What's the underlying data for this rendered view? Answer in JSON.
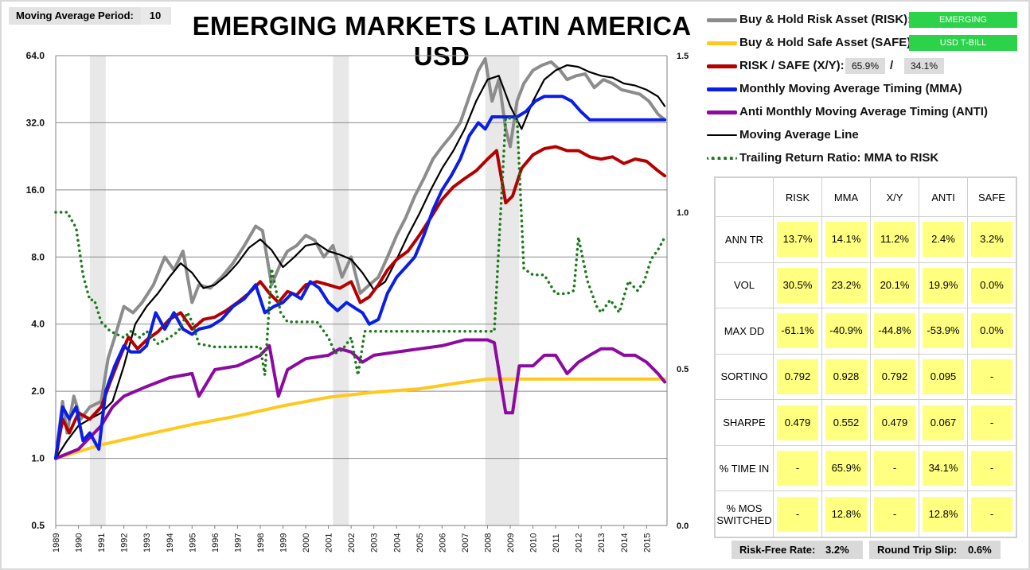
{
  "settings": {
    "ma_period_label": "Moving Average Period:",
    "ma_period_value": "10"
  },
  "chart_data": {
    "type": "line",
    "title": "EMERGING MARKETS LATIN AMERICA USD",
    "y_scale": "log2",
    "ylim": [
      0.5,
      64
    ],
    "y_ticks": [
      "64.0",
      "32.0",
      "16.0",
      "8.0",
      "4.0",
      "2.0",
      "1.0",
      "0.5"
    ],
    "y2lim": [
      0.0,
      1.5
    ],
    "y2_ticks": [
      "1.5",
      "1.0",
      "0.5",
      "0.0"
    ],
    "x_range": [
      1989.0,
      2015.9
    ],
    "x_ticks": [
      "1989",
      "1990",
      "1991",
      "1992",
      "1993",
      "1994",
      "1995",
      "1996",
      "1997",
      "1998",
      "1999",
      "2000",
      "2001",
      "2002",
      "2003",
      "2004",
      "2005",
      "2006",
      "2007",
      "2008",
      "2009",
      "2010",
      "2011",
      "2012",
      "2013",
      "2014",
      "2015"
    ],
    "grid": true,
    "legend_position": "right",
    "shaded_periods": [
      [
        1990.5,
        1991.2
      ],
      [
        2001.2,
        2001.9
      ],
      [
        2007.9,
        2009.4
      ]
    ],
    "series": [
      {
        "name": "Buy & Hold Risk Asset (RISK):",
        "axis": "left",
        "color": "#8c8c8c",
        "x": [
          1989.0,
          1989.3,
          1989.5,
          1989.8,
          1990.1,
          1990.5,
          1991.0,
          1991.3,
          1991.6,
          1992.0,
          1992.4,
          1992.8,
          1993.3,
          1993.8,
          1994.2,
          1994.6,
          1995.0,
          1995.3,
          1995.8,
          1996.3,
          1996.8,
          1997.3,
          1997.8,
          1998.1,
          1998.5,
          1998.9,
          1999.2,
          1999.6,
          2000.0,
          2000.4,
          2000.8,
          2001.2,
          2001.6,
          2002.0,
          2002.4,
          2002.8,
          2003.2,
          2003.6,
          2004.0,
          2004.4,
          2004.8,
          2005.2,
          2005.6,
          2006.0,
          2006.4,
          2006.8,
          2007.2,
          2007.6,
          2007.9,
          2008.2,
          2008.5,
          2008.8,
          2009.0,
          2009.3,
          2009.6,
          2010.0,
          2010.4,
          2010.8,
          2011.2,
          2011.5,
          2011.9,
          2012.3,
          2012.7,
          2013.1,
          2013.5,
          2013.9,
          2014.3,
          2014.7,
          2015.1,
          2015.5,
          2015.8
        ],
        "y": [
          1.0,
          1.8,
          1.3,
          1.9,
          1.5,
          1.7,
          1.8,
          2.8,
          3.5,
          4.8,
          4.5,
          5.0,
          6.0,
          8.0,
          7.0,
          8.5,
          5.0,
          6.0,
          5.8,
          6.5,
          7.5,
          9.0,
          11.0,
          10.5,
          6.0,
          7.5,
          8.5,
          9.0,
          10.0,
          9.5,
          8.0,
          9.0,
          6.5,
          8.0,
          5.5,
          6.0,
          6.5,
          8.0,
          10.0,
          12.0,
          15.0,
          18.0,
          22.0,
          25.0,
          28.0,
          32.0,
          42.0,
          55.0,
          62.0,
          40.0,
          50.0,
          30.0,
          25.0,
          40.0,
          48.0,
          55.0,
          58.0,
          60.0,
          55.0,
          50.0,
          52.0,
          53.0,
          46.0,
          50.0,
          48.0,
          45.0,
          44.0,
          43.0,
          40.0,
          35.0,
          33.0
        ]
      },
      {
        "name": "Buy & Hold Safe Asset (SAFE):",
        "axis": "left",
        "color": "#ffc81e",
        "x": [
          1989.0,
          1991.0,
          1993.0,
          1995.0,
          1997.0,
          1999.0,
          2001.0,
          2003.0,
          2005.0,
          2007.0,
          2008.0,
          2009.0,
          2011.0,
          2013.0,
          2015.8
        ],
        "y": [
          1.0,
          1.15,
          1.28,
          1.42,
          1.55,
          1.72,
          1.88,
          1.98,
          2.05,
          2.2,
          2.27,
          2.27,
          2.27,
          2.27,
          2.27
        ]
      },
      {
        "name": "RISK / SAFE (X/Y):",
        "axis": "left",
        "color": "#b40000",
        "x": [
          1989.0,
          1989.3,
          1989.6,
          1990.0,
          1990.5,
          1991.0,
          1991.4,
          1991.8,
          1992.2,
          1992.6,
          1993.0,
          1993.5,
          1994.0,
          1994.5,
          1995.0,
          1995.5,
          1996.0,
          1996.5,
          1997.0,
          1997.5,
          1998.0,
          1998.4,
          1998.8,
          1999.2,
          1999.6,
          2000.0,
          2000.5,
          2001.0,
          2001.5,
          2002.0,
          2002.4,
          2002.8,
          2003.2,
          2003.6,
          2004.0,
          2004.5,
          2005.0,
          2005.5,
          2006.0,
          2006.5,
          2007.0,
          2007.5,
          2008.0,
          2008.4,
          2008.8,
          2009.1,
          2009.5,
          2010.0,
          2010.5,
          2011.0,
          2011.5,
          2012.0,
          2012.5,
          2013.0,
          2013.5,
          2014.0,
          2014.5,
          2015.0,
          2015.5,
          2015.8
        ],
        "y": [
          1.0,
          1.5,
          1.3,
          1.6,
          1.5,
          1.7,
          2.2,
          2.8,
          3.5,
          3.1,
          3.4,
          3.7,
          4.2,
          4.5,
          3.8,
          4.2,
          4.3,
          4.6,
          5.0,
          5.5,
          6.2,
          5.5,
          5.0,
          5.6,
          5.4,
          6.0,
          6.2,
          6.0,
          5.8,
          6.2,
          5.0,
          5.3,
          6.0,
          7.0,
          7.8,
          8.5,
          10.0,
          12.0,
          14.5,
          16.5,
          18.0,
          19.5,
          22.0,
          24.0,
          14.0,
          15.0,
          20.0,
          23.0,
          24.5,
          25.0,
          24.0,
          24.0,
          22.5,
          22.0,
          22.5,
          21.0,
          22.0,
          21.5,
          19.5,
          18.5
        ]
      },
      {
        "name": "Monthly Moving Average Timing (MMA)",
        "axis": "left",
        "color": "#0a1ee6",
        "x": [
          1989.0,
          1989.3,
          1989.6,
          1989.9,
          1990.2,
          1990.5,
          1990.9,
          1991.2,
          1991.6,
          1992.0,
          1992.3,
          1992.7,
          1993.0,
          1993.4,
          1993.8,
          1994.2,
          1994.6,
          1995.0,
          1995.3,
          1995.8,
          1996.3,
          1996.8,
          1997.3,
          1997.8,
          1998.2,
          1998.6,
          1999.0,
          1999.4,
          1999.8,
          2000.2,
          2000.6,
          2001.0,
          2001.4,
          2001.8,
          2002.2,
          2002.5,
          2002.8,
          2003.2,
          2003.6,
          2004.0,
          2004.4,
          2004.8,
          2005.2,
          2005.6,
          2006.0,
          2006.4,
          2006.8,
          2007.2,
          2007.6,
          2007.9,
          2008.2,
          2008.6,
          2009.0,
          2009.3,
          2009.7,
          2010.1,
          2010.5,
          2010.9,
          2011.3,
          2011.7,
          2012.1,
          2012.5,
          2012.9,
          2013.3,
          2013.7,
          2014.1,
          2014.5,
          2014.9,
          2015.3,
          2015.8
        ],
        "y": [
          1.0,
          1.7,
          1.5,
          1.7,
          1.2,
          1.3,
          1.1,
          2.0,
          2.6,
          3.2,
          3.0,
          3.0,
          3.2,
          4.5,
          3.8,
          4.5,
          3.8,
          3.6,
          3.8,
          3.9,
          4.2,
          4.8,
          5.2,
          6.0,
          4.5,
          4.8,
          5.0,
          5.5,
          5.2,
          6.2,
          5.8,
          5.0,
          4.6,
          5.0,
          4.7,
          4.5,
          4.0,
          4.2,
          5.5,
          6.5,
          7.2,
          8.0,
          10.0,
          13.0,
          16.0,
          18.5,
          22.0,
          28.0,
          32.0,
          30.0,
          34.0,
          34.0,
          34.0,
          34.0,
          36.0,
          40.0,
          42.0,
          42.0,
          42.0,
          40.0,
          36.0,
          33.0,
          33.0,
          33.0,
          33.0,
          33.0,
          33.0,
          33.0,
          33.0,
          33.0
        ]
      },
      {
        "name": "Anti Monthly Moving Average Timing (ANTI)",
        "axis": "left",
        "color": "#8c0aa0",
        "x": [
          1989.0,
          1990.0,
          1991.0,
          1991.5,
          1992.0,
          1993.0,
          1994.0,
          1995.0,
          1995.3,
          1996.0,
          1997.0,
          1998.0,
          1998.4,
          1998.8,
          1999.2,
          2000.0,
          2001.0,
          2001.5,
          2002.0,
          2002.5,
          2003.0,
          2004.0,
          2005.0,
          2006.0,
          2007.0,
          2008.0,
          2008.3,
          2008.8,
          2009.1,
          2009.4,
          2010.0,
          2010.5,
          2011.0,
          2011.5,
          2012.0,
          2012.5,
          2013.0,
          2013.5,
          2014.0,
          2014.5,
          2015.0,
          2015.5,
          2015.8
        ],
        "y": [
          1.0,
          1.1,
          1.4,
          1.7,
          1.9,
          2.1,
          2.3,
          2.4,
          1.9,
          2.5,
          2.6,
          2.9,
          3.2,
          1.9,
          2.5,
          2.8,
          2.9,
          3.1,
          3.0,
          2.7,
          2.9,
          3.0,
          3.1,
          3.2,
          3.4,
          3.4,
          3.3,
          1.6,
          1.6,
          2.6,
          2.6,
          2.9,
          2.9,
          2.4,
          2.7,
          2.9,
          3.1,
          3.1,
          2.9,
          2.9,
          2.7,
          2.4,
          2.2
        ]
      },
      {
        "name": "Moving Average Line",
        "axis": "left",
        "color": "#000000",
        "x": [
          1989.0,
          1989.5,
          1990.0,
          1990.5,
          1991.0,
          1991.5,
          1992.0,
          1992.5,
          1993.0,
          1993.5,
          1994.0,
          1994.5,
          1995.0,
          1995.5,
          1996.0,
          1996.5,
          1997.0,
          1997.5,
          1998.0,
          1998.5,
          1999.0,
          1999.5,
          2000.0,
          2000.5,
          2001.0,
          2001.5,
          2002.0,
          2002.5,
          2003.0,
          2003.5,
          2004.0,
          2004.5,
          2005.0,
          2005.5,
          2006.0,
          2006.5,
          2007.0,
          2007.5,
          2008.0,
          2008.5,
          2009.0,
          2009.5,
          2010.0,
          2010.5,
          2011.0,
          2011.5,
          2012.0,
          2012.5,
          2013.0,
          2013.5,
          2014.0,
          2014.5,
          2015.0,
          2015.5,
          2015.8
        ],
        "y": [
          1.0,
          1.2,
          1.4,
          1.5,
          1.6,
          1.8,
          2.6,
          4.0,
          4.8,
          5.5,
          6.5,
          7.5,
          6.8,
          5.8,
          6.0,
          6.6,
          7.5,
          8.8,
          9.6,
          8.6,
          7.2,
          8.0,
          9.0,
          9.2,
          8.5,
          8.2,
          7.8,
          6.8,
          5.7,
          6.2,
          7.8,
          10.0,
          12.5,
          16.0,
          20.0,
          24.0,
          30.0,
          40.0,
          50.0,
          52.0,
          38.0,
          30.0,
          40.0,
          50.0,
          55.0,
          58.0,
          57.0,
          54.0,
          52.0,
          51.0,
          48.0,
          47.0,
          45.0,
          42.0,
          38.0
        ]
      },
      {
        "name": "Trailing Return Ratio: MMA to RISK",
        "axis": "right",
        "color": "#1a7a1a",
        "dotted": true,
        "x": [
          1989.0,
          1989.5,
          1989.9,
          1990.2,
          1990.5,
          1990.7,
          1991.0,
          1991.4,
          1992.0,
          1992.3,
          1992.7,
          1993.0,
          1993.5,
          1994.0,
          1994.4,
          1994.8,
          1995.0,
          1995.3,
          1996.0,
          1996.6,
          1997.0,
          1997.5,
          1998.0,
          1998.2,
          1998.5,
          1998.9,
          1999.2,
          1999.6,
          2000.0,
          2000.5,
          2001.0,
          2001.3,
          2001.6,
          2002.0,
          2002.3,
          2002.6,
          2002.8,
          2003.2,
          2004.0,
          2005.0,
          2006.0,
          2007.0,
          2007.6,
          2008.0,
          2008.3,
          2008.8,
          2009.0,
          2009.3,
          2009.6,
          2010.0,
          2010.5,
          2011.0,
          2011.5,
          2011.8,
          2012.0,
          2012.4,
          2012.8,
          2013.0,
          2013.4,
          2013.8,
          2014.2,
          2014.6,
          2014.9,
          2015.2,
          2015.5,
          2015.8
        ],
        "y": [
          1.0,
          1.0,
          0.95,
          0.8,
          0.72,
          0.72,
          0.65,
          0.62,
          0.6,
          0.62,
          0.6,
          0.62,
          0.58,
          0.6,
          0.62,
          0.68,
          0.65,
          0.58,
          0.57,
          0.57,
          0.57,
          0.57,
          0.57,
          0.48,
          0.82,
          0.68,
          0.65,
          0.65,
          0.65,
          0.65,
          0.6,
          0.55,
          0.56,
          0.6,
          0.48,
          0.62,
          0.62,
          0.62,
          0.62,
          0.62,
          0.62,
          0.62,
          0.62,
          0.62,
          0.62,
          1.3,
          1.3,
          1.3,
          0.82,
          0.8,
          0.8,
          0.74,
          0.74,
          0.75,
          0.92,
          0.78,
          0.7,
          0.68,
          0.72,
          0.68,
          0.78,
          0.75,
          0.78,
          0.85,
          0.88,
          0.92
        ]
      }
    ]
  },
  "legend": {
    "items": [
      {
        "label": "Buy & Hold Risk Asset (RISK):",
        "badge": "EMERGING"
      },
      {
        "label": "Buy & Hold Safe Asset (SAFE):",
        "badge": "USD T-BILL"
      },
      {
        "label": "RISK / SAFE (X/Y):",
        "pct_a": "65.9%",
        "separator": "/",
        "pct_b": "34.1%"
      },
      {
        "label": "Monthly Moving Average Timing (MMA)"
      },
      {
        "label": "Anti Monthly Moving Average Timing (ANTI)"
      },
      {
        "label": "Moving Average Line"
      },
      {
        "label": "Trailing Return Ratio: MMA to RISK"
      }
    ],
    "colors": {
      "risk": "#8c8c8c",
      "safe": "#ffc81e",
      "xy": "#b40000",
      "mma": "#0a1ee6",
      "anti": "#8c0aa0",
      "ma_line": "#000000",
      "ratio": "#1a7a1a",
      "badge_green": "#2bd24a",
      "cell_yellow": "#ffff80"
    }
  },
  "stats": {
    "columns": [
      "RISK",
      "MMA",
      "X/Y",
      "ANTI",
      "SAFE"
    ],
    "rows": [
      {
        "label": "ANN TR",
        "values": [
          "13.7%",
          "14.1%",
          "11.2%",
          "2.4%",
          "3.2%"
        ]
      },
      {
        "label": "VOL",
        "values": [
          "30.5%",
          "23.2%",
          "20.1%",
          "19.9%",
          "0.0%"
        ]
      },
      {
        "label": "MAX DD",
        "values": [
          "-61.1%",
          "-40.9%",
          "-44.8%",
          "-53.9%",
          "0.0%"
        ]
      },
      {
        "label": "SORTINO",
        "values": [
          "0.792",
          "0.928",
          "0.792",
          "0.095",
          "-"
        ]
      },
      {
        "label": "SHARPE",
        "values": [
          "0.479",
          "0.552",
          "0.479",
          "0.067",
          "-"
        ]
      },
      {
        "label": "% TIME IN",
        "values": [
          "-",
          "65.9%",
          "-",
          "34.1%",
          "-"
        ]
      },
      {
        "label": "% MOS SWITCHED",
        "values": [
          "-",
          "12.8%",
          "-",
          "12.8%",
          "-"
        ]
      }
    ]
  },
  "footer": {
    "risk_free_label": "Risk-Free Rate:",
    "risk_free_value": "3.2%",
    "round_trip_label": "Round Trip Slip:",
    "round_trip_value": "0.6%"
  }
}
